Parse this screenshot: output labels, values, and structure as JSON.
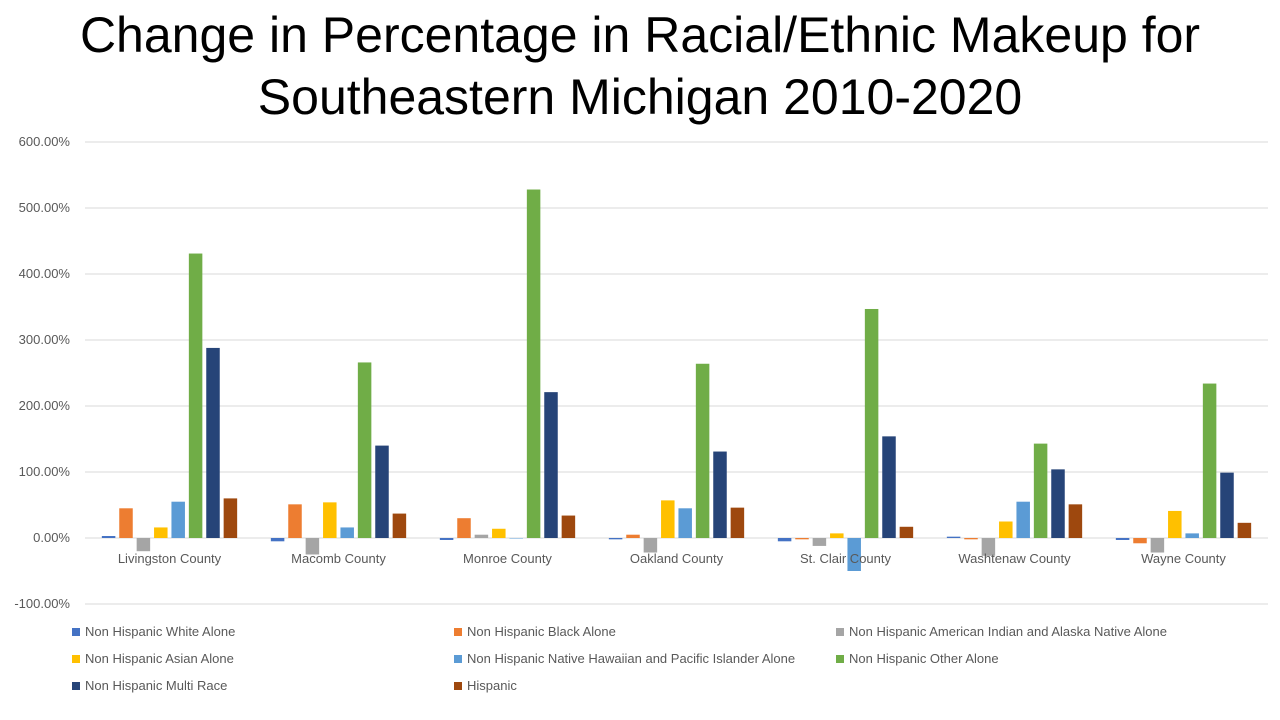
{
  "title_lines": [
    "Change in Percentage in Racial/Ethnic Makeup for",
    "Southeastern Michigan 2010-2020"
  ],
  "chart_data": {
    "type": "bar",
    "title": "Change in Percentage in Racial/Ethnic Makeup for Southeastern Michigan 2010-2020",
    "xlabel": "",
    "ylabel": "",
    "ylim": [
      -100,
      600
    ],
    "y_ticks": [
      -100,
      0,
      100,
      200,
      300,
      400,
      500,
      600
    ],
    "y_tick_labels": [
      "-100.00%",
      "0.00%",
      "100.00%",
      "200.00%",
      "300.00%",
      "400.00%",
      "500.00%",
      "600.00%"
    ],
    "grid": true,
    "legend_position": "bottom",
    "categories": [
      "Livingston County",
      "Macomb County",
      "Monroe County",
      "Oakland County",
      "St. Clair County",
      "Washtenaw County",
      "Wayne County"
    ],
    "series": [
      {
        "name": "Non Hispanic White Alone",
        "color": "#4472C4",
        "values": [
          3,
          -5,
          -3,
          -2,
          -5,
          2,
          -3
        ]
      },
      {
        "name": "Non Hispanic Black Alone",
        "color": "#ED7D31",
        "values": [
          45,
          51,
          30,
          5,
          -2,
          -2,
          -8
        ]
      },
      {
        "name": "Non Hispanic American Indian and Alaska Native Alone",
        "color": "#A5A5A5",
        "values": [
          -20,
          -25,
          5,
          -22,
          -12,
          -27,
          -22
        ]
      },
      {
        "name": "Non Hispanic Asian Alone",
        "color": "#FFC000",
        "values": [
          16,
          54,
          14,
          57,
          7,
          25,
          41
        ]
      },
      {
        "name": "Non Hispanic Native Hawaiian and Pacific Islander Alone",
        "color": "#5B9BD5",
        "values": [
          55,
          16,
          0,
          45,
          -50,
          55,
          7
        ]
      },
      {
        "name": "Non Hispanic Other Alone",
        "color": "#70AD47",
        "values": [
          431,
          266,
          528,
          264,
          347,
          143,
          234
        ]
      },
      {
        "name": "Non Hispanic Multi Race",
        "color": "#264478",
        "values": [
          288,
          140,
          221,
          131,
          154,
          104,
          99
        ]
      },
      {
        "name": "Hispanic",
        "color": "#9E480E",
        "values": [
          60,
          37,
          34,
          46,
          17,
          51,
          23
        ]
      }
    ]
  }
}
